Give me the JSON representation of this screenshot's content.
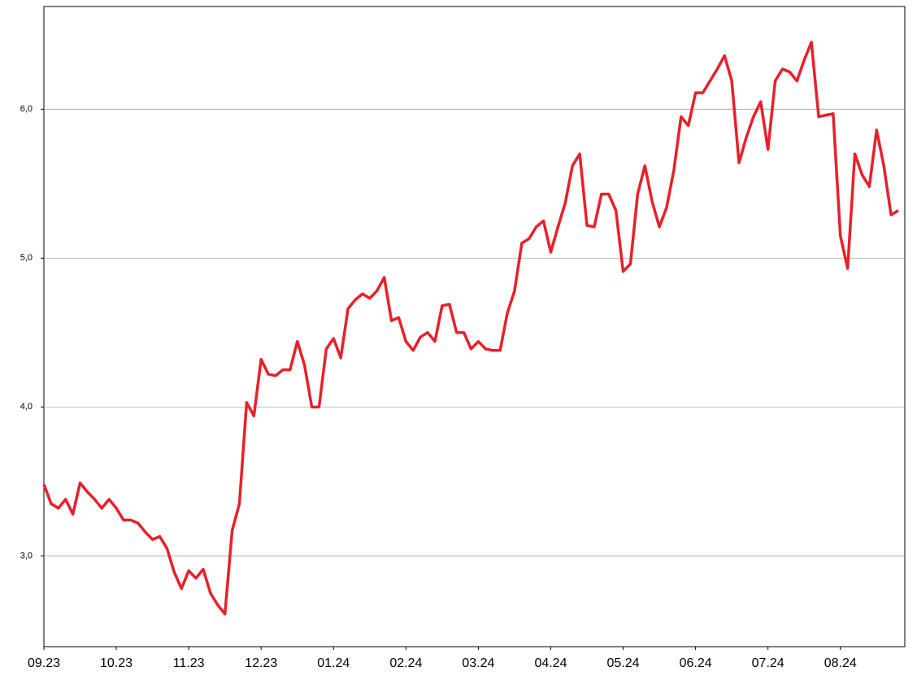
{
  "chart_data": {
    "type": "line",
    "categories": [
      "09.23",
      null,
      null,
      null,
      null,
      null,
      null,
      null,
      null,
      null,
      "10.23",
      null,
      null,
      null,
      null,
      null,
      null,
      null,
      null,
      null,
      "11.23",
      null,
      null,
      null,
      null,
      null,
      null,
      null,
      null,
      null,
      "12.23",
      null,
      null,
      null,
      null,
      null,
      null,
      null,
      null,
      null,
      "01.24",
      null,
      null,
      null,
      null,
      null,
      null,
      null,
      null,
      null,
      "02.24",
      null,
      null,
      null,
      null,
      null,
      null,
      null,
      null,
      null,
      "03.24",
      null,
      null,
      null,
      null,
      null,
      null,
      null,
      null,
      null,
      "04.24",
      null,
      null,
      null,
      null,
      null,
      null,
      null,
      null,
      null,
      "05.24",
      null,
      null,
      null,
      null,
      null,
      null,
      null,
      null,
      null,
      "06.24",
      null,
      null,
      null,
      null,
      null,
      null,
      null,
      null,
      null,
      "07.24",
      null,
      null,
      null,
      null,
      null,
      null,
      null,
      null,
      null,
      "08.24",
      null,
      null,
      null,
      null,
      null,
      null,
      null,
      null
    ],
    "series": [
      {
        "color": "#e8202a",
        "values": [
          3.48,
          3.35,
          3.32,
          3.38,
          3.28,
          3.49,
          3.43,
          3.38,
          3.32,
          3.38,
          3.32,
          3.24,
          3.24,
          3.22,
          3.16,
          3.11,
          3.13,
          3.05,
          2.89,
          2.78,
          2.9,
          2.85,
          2.91,
          2.75,
          2.67,
          2.61,
          3.17,
          3.35,
          4.03,
          3.94,
          4.32,
          4.22,
          4.21,
          4.25,
          4.25,
          4.44,
          4.28,
          4.0,
          4.0,
          4.39,
          4.46,
          4.33,
          4.66,
          4.72,
          4.76,
          4.73,
          4.78,
          4.87,
          4.58,
          4.6,
          4.44,
          4.38,
          4.47,
          4.5,
          4.44,
          4.68,
          4.69,
          4.5,
          4.5,
          4.39,
          4.44,
          4.39,
          4.38,
          4.38,
          4.63,
          4.78,
          5.1,
          5.13,
          5.21,
          5.25,
          5.04,
          5.21,
          5.37,
          5.62,
          5.7,
          5.22,
          5.21,
          5.43,
          5.43,
          5.32,
          4.91,
          4.96,
          5.43,
          5.62,
          5.38,
          5.21,
          5.34,
          5.59,
          5.95,
          5.89,
          6.11,
          6.11,
          6.19,
          6.27,
          6.36,
          6.19,
          5.64,
          5.81,
          5.95,
          6.05,
          5.73,
          6.19,
          6.27,
          6.25,
          6.19,
          6.33,
          6.45,
          5.95,
          5.96,
          5.97,
          5.15,
          4.93,
          5.7,
          5.56,
          5.48,
          5.86,
          5.62,
          5.29,
          5.32
        ]
      }
    ],
    "ylim": [
      2.39,
      6.69
    ],
    "yticks": [
      {
        "value": 3,
        "label": "3,0"
      },
      {
        "value": 4,
        "label": "4,0"
      },
      {
        "value": 5,
        "label": "5,0"
      },
      {
        "value": 6,
        "label": "6,0"
      }
    ],
    "grid": true
  }
}
